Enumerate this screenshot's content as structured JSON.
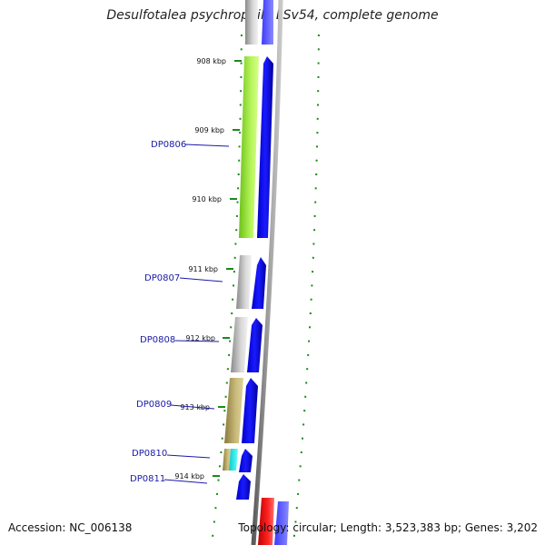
{
  "title": "Desulfotalea psychrophila LSv54, complete genome",
  "footer": {
    "accession": "Accession: NC_006138",
    "summary": "Topology: circular; Length: 3,523,383 bp; Genes: 3,202"
  },
  "scale": {
    "unit": "kbp",
    "ticks": [
      {
        "label": "908 kbp"
      },
      {
        "label": "909 kbp"
      },
      {
        "label": "910 kbp"
      },
      {
        "label": "911 kbp"
      },
      {
        "label": "912 kbp"
      },
      {
        "label": "913 kbp"
      },
      {
        "label": "914 kbp"
      }
    ]
  },
  "genes": [
    {
      "label": "",
      "strand": "+",
      "cog_color": "#bdbdbd"
    },
    {
      "label": "DP0806",
      "strand": "+",
      "cog_color": "#a6f03c"
    },
    {
      "label": "DP0807",
      "strand": "+",
      "cog_color": "#c8c8c8"
    },
    {
      "label": "DP0808",
      "strand": "+",
      "cog_color": "#c0c0c0"
    },
    {
      "label": "DP0809",
      "strand": "+",
      "cog_color": "#c2b26e"
    },
    {
      "label": "DP0810",
      "strand": "+",
      "cog_color": "#c2b26e",
      "cog_color_2": "#29e6e6"
    },
    {
      "label": "DP0811",
      "strand": "+",
      "cog_color": ""
    },
    {
      "label": "",
      "strand": "+",
      "cog_color": "#ee1111"
    }
  ],
  "colors": {
    "strand_arrow": "#0a0aee",
    "backbone": "#808080",
    "tick_marks": "#1a8a1a",
    "gene_label": "#1a1aa8"
  }
}
